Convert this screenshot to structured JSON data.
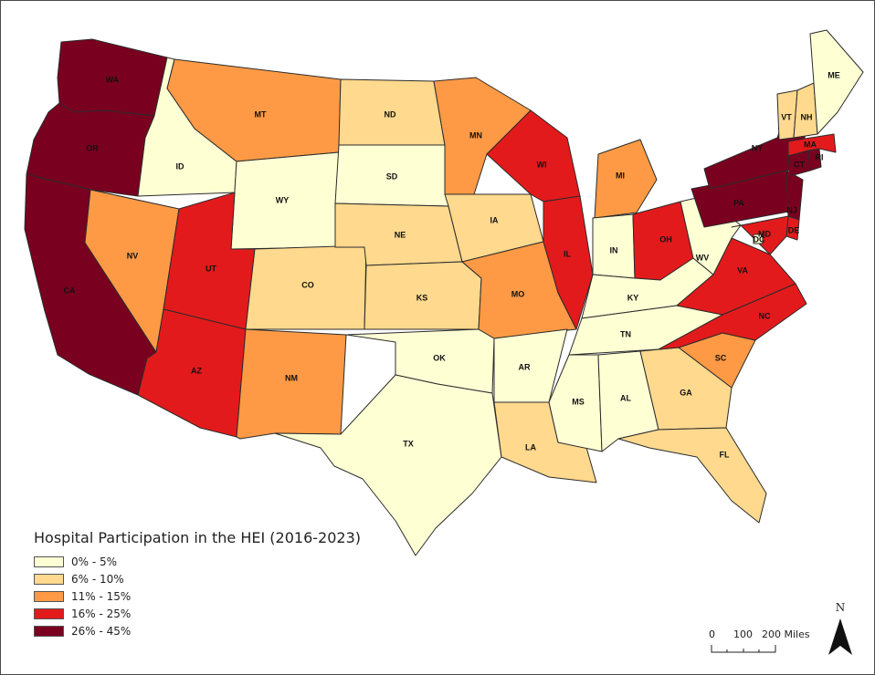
{
  "legend": {
    "title": "Hospital Participation in the HEI (2016-2023)",
    "classes": [
      {
        "label": "0% - 5%",
        "color": "#ffffd4"
      },
      {
        "label": "6% - 10%",
        "color": "#fed98e"
      },
      {
        "label": "11% - 15%",
        "color": "#fe9a45"
      },
      {
        "label": "16% - 25%",
        "color": "#e31a1c"
      },
      {
        "label": "26% - 45%",
        "color": "#7a0020"
      }
    ]
  },
  "scale_bar": {
    "tick_0": "0",
    "tick_100": "100",
    "tick_200": "200 Miles"
  },
  "north_arrow": {
    "label": "N",
    "icon": "north-arrow-icon"
  },
  "states": [
    {
      "abbr": "WA",
      "class": 4
    },
    {
      "abbr": "OR",
      "class": 4
    },
    {
      "abbr": "CA",
      "class": 4
    },
    {
      "abbr": "ID",
      "class": 0
    },
    {
      "abbr": "NV",
      "class": 2
    },
    {
      "abbr": "MT",
      "class": 2
    },
    {
      "abbr": "WY",
      "class": 0
    },
    {
      "abbr": "UT",
      "class": 3
    },
    {
      "abbr": "AZ",
      "class": 3
    },
    {
      "abbr": "CO",
      "class": 1
    },
    {
      "abbr": "NM",
      "class": 2
    },
    {
      "abbr": "ND",
      "class": 1
    },
    {
      "abbr": "SD",
      "class": 0
    },
    {
      "abbr": "NE",
      "class": 1
    },
    {
      "abbr": "KS",
      "class": 1
    },
    {
      "abbr": "OK",
      "class": 0
    },
    {
      "abbr": "TX",
      "class": 0
    },
    {
      "abbr": "MN",
      "class": 2
    },
    {
      "abbr": "IA",
      "class": 1
    },
    {
      "abbr": "MO",
      "class": 2
    },
    {
      "abbr": "AR",
      "class": 0
    },
    {
      "abbr": "LA",
      "class": 1
    },
    {
      "abbr": "WI",
      "class": 3
    },
    {
      "abbr": "IL",
      "class": 3
    },
    {
      "abbr": "MI",
      "class": 2
    },
    {
      "abbr": "IN",
      "class": 0
    },
    {
      "abbr": "OH",
      "class": 3
    },
    {
      "abbr": "KY",
      "class": 0
    },
    {
      "abbr": "TN",
      "class": 0
    },
    {
      "abbr": "MS",
      "class": 0
    },
    {
      "abbr": "AL",
      "class": 0
    },
    {
      "abbr": "GA",
      "class": 1
    },
    {
      "abbr": "FL",
      "class": 1
    },
    {
      "abbr": "SC",
      "class": 2
    },
    {
      "abbr": "NC",
      "class": 3
    },
    {
      "abbr": "VA",
      "class": 3
    },
    {
      "abbr": "WV",
      "class": 0
    },
    {
      "abbr": "PA",
      "class": 4
    },
    {
      "abbr": "NY",
      "class": 4
    },
    {
      "abbr": "NJ",
      "class": 4
    },
    {
      "abbr": "DE",
      "class": 3
    },
    {
      "abbr": "MD",
      "class": 3
    },
    {
      "abbr": "DC",
      "class": 0
    },
    {
      "abbr": "CT",
      "class": 4
    },
    {
      "abbr": "RI",
      "class": 4
    },
    {
      "abbr": "MA",
      "class": 3
    },
    {
      "abbr": "VT",
      "class": 1
    },
    {
      "abbr": "NH",
      "class": 1
    },
    {
      "abbr": "ME",
      "class": 0
    }
  ]
}
